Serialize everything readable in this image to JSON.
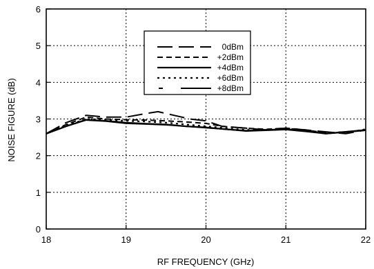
{
  "chart_data": {
    "type": "line",
    "xlabel": "RF FREQUENCY (GHz)",
    "ylabel": "NOISE FIGURE (dB)",
    "xlim": [
      18,
      22
    ],
    "ylim": [
      0,
      6
    ],
    "xticks": [
      "18",
      "19",
      "20",
      "21",
      "22"
    ],
    "yticks": [
      "0",
      "1",
      "2",
      "3",
      "4",
      "5",
      "6"
    ],
    "grid": true,
    "legend_position": "top-center",
    "series": [
      {
        "name": "0dBm",
        "dash": "long-dash",
        "x": [
          18.0,
          18.25,
          18.5,
          18.75,
          19.0,
          19.25,
          19.4,
          19.6,
          19.8,
          20.0,
          20.2,
          20.5,
          20.75,
          21.0,
          21.25,
          21.5,
          21.75,
          22.0
        ],
        "y": [
          2.6,
          2.9,
          3.1,
          3.05,
          3.05,
          3.15,
          3.2,
          3.1,
          3.0,
          2.95,
          2.8,
          2.75,
          2.7,
          2.75,
          2.7,
          2.65,
          2.6,
          2.7
        ]
      },
      {
        "name": "+2dBm",
        "dash": "short-dash",
        "x": [
          18.0,
          18.25,
          18.5,
          18.75,
          19.0,
          19.25,
          19.5,
          19.75,
          20.0,
          20.2,
          20.5,
          20.75,
          21.0,
          21.25,
          21.5,
          21.75,
          22.0
        ],
        "y": [
          2.6,
          2.85,
          3.05,
          3.0,
          2.98,
          2.97,
          2.95,
          2.92,
          2.88,
          2.8,
          2.75,
          2.72,
          2.75,
          2.7,
          2.62,
          2.65,
          2.7
        ]
      },
      {
        "name": "+4dBm",
        "dash": "solid",
        "x": [
          18.0,
          18.25,
          18.5,
          18.75,
          19.0,
          19.25,
          19.5,
          19.75,
          20.0,
          20.25,
          20.5,
          20.75,
          21.0,
          21.25,
          21.5,
          21.75,
          22.0
        ],
        "y": [
          2.6,
          2.8,
          2.98,
          2.95,
          2.9,
          2.87,
          2.85,
          2.8,
          2.77,
          2.72,
          2.68,
          2.7,
          2.72,
          2.68,
          2.6,
          2.65,
          2.7
        ]
      },
      {
        "name": "+6dBm",
        "dash": "dotted",
        "x": [
          18.0,
          18.25,
          18.5,
          18.75,
          19.0,
          19.25,
          19.5,
          19.75,
          20.0,
          20.25,
          20.5,
          20.75,
          21.0,
          21.25,
          21.5,
          21.75,
          22.0
        ],
        "y": [
          2.6,
          2.82,
          3.0,
          2.98,
          2.95,
          2.93,
          2.9,
          2.85,
          2.8,
          2.75,
          2.7,
          2.7,
          2.75,
          2.68,
          2.62,
          2.63,
          2.72
        ]
      },
      {
        "name": "+8dBm",
        "dash": "dash-dot",
        "x": [
          18.0,
          18.25,
          18.5,
          18.75,
          19.0,
          19.25,
          19.5,
          19.75,
          20.0,
          20.25,
          20.5,
          20.75,
          21.0,
          21.25,
          21.5,
          21.75,
          22.0
        ],
        "y": [
          2.6,
          2.8,
          2.97,
          2.94,
          2.88,
          2.86,
          2.84,
          2.8,
          2.76,
          2.72,
          2.67,
          2.69,
          2.71,
          2.66,
          2.6,
          2.64,
          2.69
        ]
      }
    ]
  }
}
